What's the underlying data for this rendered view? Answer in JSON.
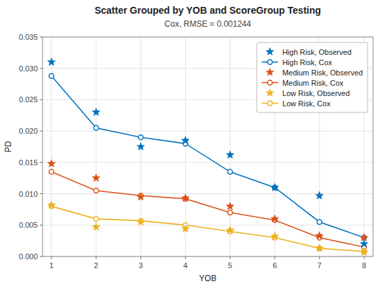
{
  "chart_data": {
    "type": "line",
    "title": "Scatter Grouped by YOB and ScoreGroup Testing",
    "subtitle": "Cox, RMSE = 0.001244",
    "xlabel": "YOB",
    "ylabel": "PD",
    "x": [
      1,
      2,
      3,
      4,
      5,
      6,
      7,
      8
    ],
    "xlim": [
      0.8,
      8.2
    ],
    "xticks": [
      1,
      2,
      3,
      4,
      5,
      6,
      7,
      8
    ],
    "ylim": [
      0,
      0.035
    ],
    "yticks": [
      {
        "value": 0,
        "label": "0.000"
      },
      0.005,
      {
        "value": 0.01,
        "label": "0.010"
      },
      0.015,
      {
        "value": 0.02,
        "label": "0.020"
      },
      0.025,
      {
        "value": 0.03,
        "label": "0.030"
      },
      0.035
    ],
    "grid": true,
    "legend": "upper right",
    "series": [
      {
        "name": "High Risk, Observed",
        "color": "#0072BD",
        "type": "scatter",
        "marker": "star",
        "values": [
          0.031,
          0.023,
          0.0175,
          0.0185,
          0.0162,
          0.011,
          0.0097,
          0.002
        ]
      },
      {
        "name": "High Risk, Cox",
        "color": "#0072BD",
        "type": "line",
        "marker": "circle",
        "line_style": "solid",
        "values": [
          0.0288,
          0.0205,
          0.019,
          0.018,
          0.0135,
          0.011,
          0.0055,
          0.003
        ]
      },
      {
        "name": "Medium Risk, Observed",
        "color": "#D95319",
        "type": "scatter",
        "marker": "star",
        "values": [
          0.0148,
          0.0125,
          0.0095,
          0.0093,
          0.008,
          0.006,
          0.0033,
          0.003
        ]
      },
      {
        "name": "Medium Risk, Cox",
        "color": "#D95319",
        "type": "line",
        "marker": "circle",
        "line_style": "solid",
        "values": [
          0.0135,
          0.0105,
          0.0097,
          0.0092,
          0.007,
          0.0058,
          0.003,
          0.0015
        ]
      },
      {
        "name": "Low Risk, Observed",
        "color": "#EDB120",
        "type": "scatter",
        "marker": "star",
        "values": [
          0.0082,
          0.0047,
          0.0055,
          0.0044,
          0.0042,
          0.0032,
          0.0013,
          0.0007
        ]
      },
      {
        "name": "Low Risk, Cox",
        "color": "#EDB120",
        "type": "line",
        "marker": "circle",
        "line_style": "solid",
        "values": [
          0.008,
          0.006,
          0.0057,
          0.005,
          0.004,
          0.003,
          0.0013,
          0.0008
        ]
      }
    ]
  }
}
